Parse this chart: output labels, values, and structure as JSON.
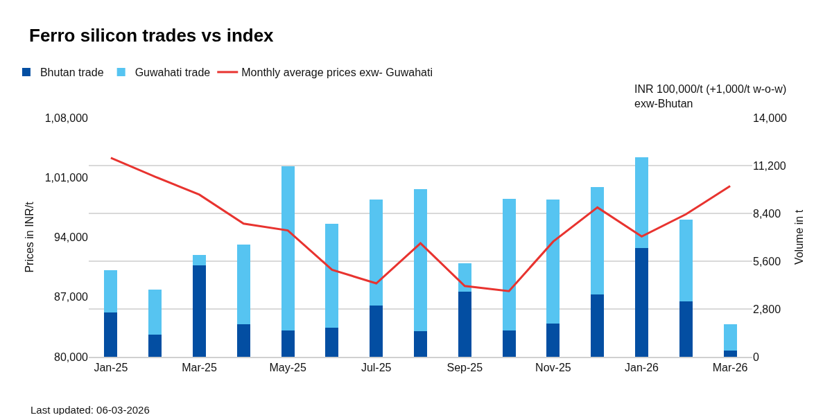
{
  "chart_data": {
    "type": "bar",
    "title": "Ferro silicon trades vs index",
    "ylabel": "Prices in INR/t",
    "y2label": "Volume in t",
    "categories": [
      "Jan-25",
      null,
      "Mar-25",
      null,
      "May-25",
      null,
      "Jul-25",
      null,
      "Sep-25",
      null,
      "Nov-25",
      null,
      "Jan-26",
      null,
      "Mar-26"
    ],
    "stacked": true,
    "series": [
      {
        "name": "Bhutan trade",
        "color": "#034ea2",
        "axis": "y2",
        "values": [
          2610,
          1310,
          5360,
          1910,
          1540,
          1700,
          3000,
          1500,
          3810,
          1540,
          1950,
          3650,
          6370,
          3250,
          370
        ]
      },
      {
        "name": "Guwahati trade",
        "color": "#56c4f1",
        "axis": "y2",
        "values": [
          2460,
          2630,
          610,
          4660,
          9620,
          6090,
          6210,
          8320,
          1670,
          7710,
          7260,
          6290,
          5320,
          4790,
          1540
        ]
      },
      {
        "name": "Monthly average prices exw- Guwahati",
        "type": "line",
        "color": "#e8332f",
        "values": [
          103300,
          101100,
          99000,
          95600,
          94800,
          90200,
          88600,
          93300,
          88300,
          87700,
          93500,
          97500,
          94100,
          96700,
          100000
        ]
      }
    ],
    "ylim": [
      80000,
      108000
    ],
    "yticks": [
      {
        "value": 80000,
        "label": "80,000"
      },
      {
        "value": 87000,
        "label": "87,000"
      },
      {
        "value": 94000,
        "label": "94,000"
      },
      {
        "value": 101000,
        "label": "1,01,000"
      },
      {
        "value": 108000,
        "label": "1,08,000"
      }
    ],
    "y2lim": [
      0,
      14000
    ],
    "y2ticks": [
      0,
      {
        "value": 2800,
        "label": "2,800"
      },
      {
        "value": 5600,
        "label": "5,600"
      },
      {
        "value": 8400,
        "label": "8,400"
      },
      {
        "value": 11200,
        "label": "11,200"
      },
      {
        "value": 14000,
        "label": "14,000"
      }
    ],
    "grid": "y",
    "legend": "top left",
    "marker": "none",
    "line_style": "solid",
    "annotations": [
      "INR 100,000/t (+1,000/t w-o-w)\nexw-Bhutan",
      "Last updated: 06-03-2026"
    ]
  }
}
